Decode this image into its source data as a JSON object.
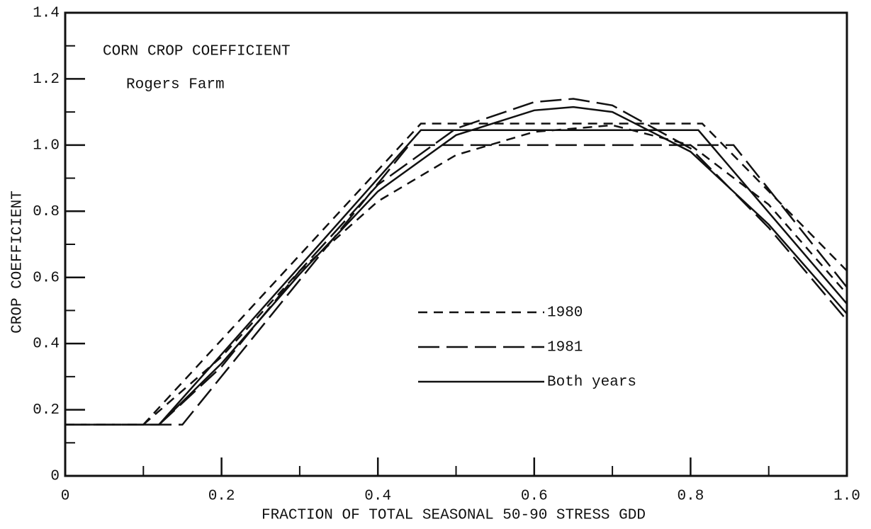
{
  "chart_data": {
    "type": "line",
    "title": "CORN CROP COEFFICIENT",
    "subtitle": "Rogers Farm",
    "xlabel": "FRACTION OF TOTAL SEASONAL 50-90 STRESS GDD",
    "ylabel": "CROP COEFFICIENT",
    "xlim": [
      0,
      1
    ],
    "ylim": [
      0,
      1.4
    ],
    "xticks": [
      0,
      0.2,
      0.4,
      0.6,
      0.8,
      {
        "value": 1,
        "label": "1.0"
      }
    ],
    "yticks": [
      0,
      0.2,
      0.4,
      0.6,
      0.8,
      {
        "value": 1,
        "label": "1.0"
      },
      1.2,
      1.4
    ],
    "xminorticks": [
      0.1,
      0.3,
      0.5,
      0.7,
      0.9
    ],
    "yminorticks": [
      0.1,
      0.3,
      0.5,
      0.7,
      0.9,
      1.1,
      1.3
    ],
    "series": [
      {
        "name": "1980",
        "color": "#111111",
        "dash": "13,9",
        "lines": [
          {
            "x": [
              0,
              0.1,
              0.455,
              0.815,
              1.0
            ],
            "values": [
              0.155,
              0.155,
              1.065,
              1.065,
              0.62
            ]
          },
          {
            "x": [
              0.1,
              0.2,
              0.3,
              0.4,
              0.5,
              0.6,
              0.7,
              0.8,
              0.9,
              1.0
            ],
            "values": [
              0.155,
              0.36,
              0.62,
              0.83,
              0.97,
              1.04,
              1.06,
              1.0,
              0.82,
              0.55
            ]
          }
        ]
      },
      {
        "name": "1981",
        "color": "#111111",
        "dash": "30,10",
        "lines": [
          {
            "x": [
              0,
              0.15,
              0.44,
              0.855,
              1.0
            ],
            "values": [
              0.155,
              0.155,
              1.0,
              1.0,
              0.57
            ]
          },
          {
            "x": [
              0.12,
              0.2,
              0.3,
              0.4,
              0.5,
              0.6,
              0.65,
              0.7,
              0.8,
              0.9,
              1.0
            ],
            "values": [
              0.155,
              0.33,
              0.62,
              0.88,
              1.05,
              1.13,
              1.14,
              1.12,
              0.99,
              0.75,
              0.47
            ]
          }
        ]
      },
      {
        "name": "Both years",
        "color": "#111111",
        "dash": "none",
        "lines": [
          {
            "x": [
              0,
              0.12,
              0.455,
              0.81,
              1.0
            ],
            "values": [
              0.155,
              0.155,
              1.045,
              1.045,
              0.52
            ]
          },
          {
            "x": [
              0.12,
              0.2,
              0.3,
              0.4,
              0.5,
              0.6,
              0.65,
              0.7,
              0.8,
              0.9,
              1.0
            ],
            "values": [
              0.155,
              0.34,
              0.61,
              0.86,
              1.03,
              1.105,
              1.115,
              1.1,
              0.98,
              0.76,
              0.49
            ]
          }
        ]
      }
    ]
  }
}
